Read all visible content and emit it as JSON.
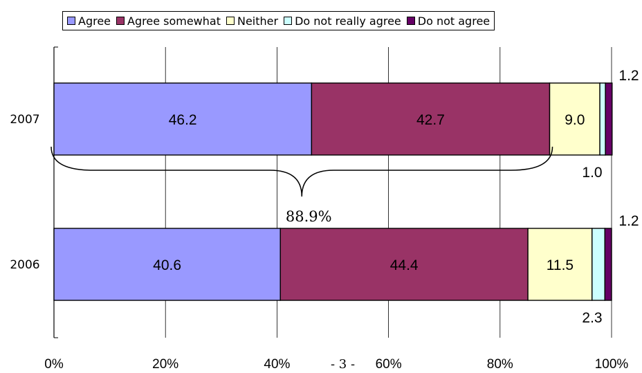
{
  "legend": [
    {
      "label": "Agree",
      "color": "#9999ff"
    },
    {
      "label": "Agree somewhat",
      "color": "#993366"
    },
    {
      "label": "Neither",
      "color": "#ffffcc"
    },
    {
      "label": "Do not really agree",
      "color": "#ccffff"
    },
    {
      "label": "Do not agree",
      "color": "#660066"
    }
  ],
  "page_number": "- 3 -",
  "chart_data": {
    "type": "bar",
    "orientation": "horizontal",
    "stacked": true,
    "percent_stacked": true,
    "categories": [
      "2007",
      "2006"
    ],
    "series": [
      {
        "name": "Agree",
        "values": [
          46.2,
          40.6
        ],
        "labels": [
          "46.2",
          "40.6"
        ]
      },
      {
        "name": "Agree somewhat",
        "values": [
          42.7,
          44.4
        ],
        "labels": [
          "42.7",
          "44.4"
        ]
      },
      {
        "name": "Neither",
        "values": [
          9.0,
          11.5
        ],
        "labels": [
          "9.0",
          "11.5"
        ]
      },
      {
        "name": "Do not really agree",
        "values": [
          1.0,
          2.3
        ],
        "labels": [
          "1.0",
          "2.3"
        ]
      },
      {
        "name": "Do not agree",
        "values": [
          1.2,
          1.2
        ],
        "labels": [
          "1.2",
          "1.2"
        ]
      }
    ],
    "xlim": [
      0,
      100
    ],
    "xticks": [
      "0%",
      "20%",
      "40%",
      "60%",
      "80%",
      "100%"
    ],
    "grid": "vertical",
    "legend_position": "top",
    "annotation": {
      "text": "88.9%",
      "category": "2007",
      "from": 0,
      "to": 88.9
    }
  }
}
